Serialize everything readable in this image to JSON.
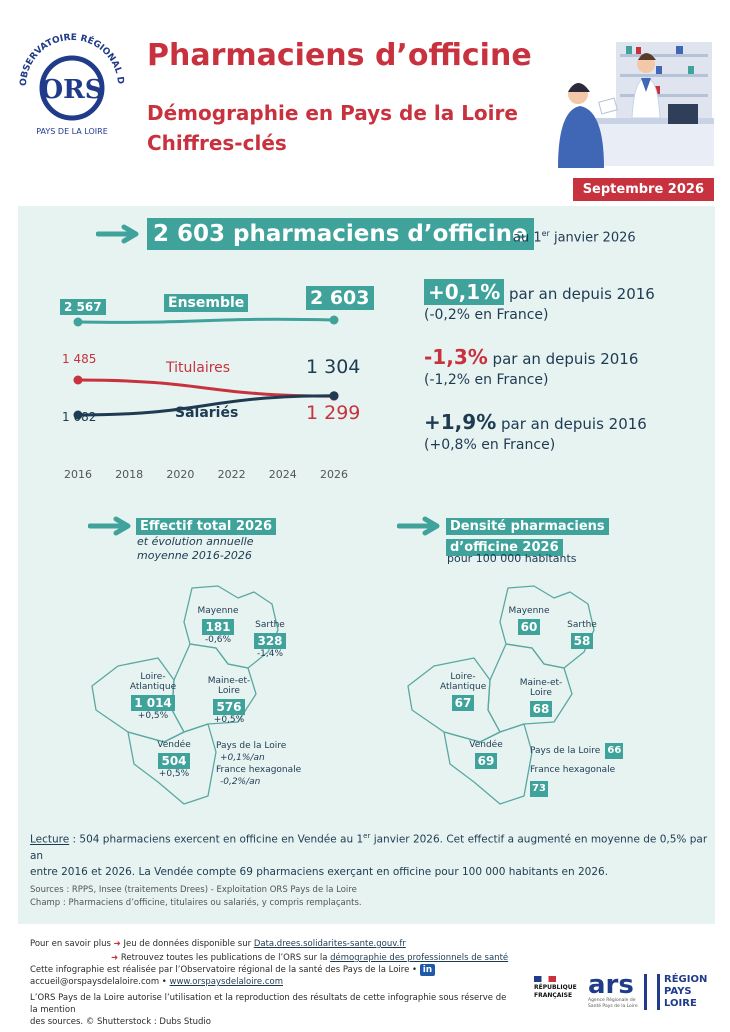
{
  "header": {
    "logo_ring_text": "OBSERVATOIRE RÉGIONAL DE LA SANTÉ",
    "logo_initials": "ORS",
    "logo_region": "PAYS DE LA LOIRE",
    "title": "Pharmaciens d’officine",
    "subtitle_line1": "Démographie en Pays de la Loire",
    "subtitle_line2": "Chiffres-clés",
    "date": "Septembre 2026"
  },
  "headline": {
    "value": "2 603 pharmaciens d’officine",
    "tail_prefix": "au 1",
    "tail_sup": "er",
    "tail_suffix": " janvier 2026"
  },
  "trend_chart": {
    "labels": {
      "ensemble": "Ensemble",
      "titulaires": "Titulaires",
      "salaries": "Salariés"
    },
    "start_values": {
      "ensemble": "2 567",
      "titulaires": "1 485",
      "salaries": "1 082"
    },
    "end_values": {
      "ensemble": "2 603",
      "titulaires": "1 299",
      "salaries": "1 304"
    }
  },
  "chart_data": {
    "type": "line",
    "x": [
      2016,
      2018,
      2020,
      2022,
      2024,
      2026
    ],
    "xticks": [
      "2016",
      "2018",
      "2020",
      "2022",
      "2024",
      "2026"
    ],
    "series": [
      {
        "name": "Ensemble",
        "x": [
          2016,
          2026
        ],
        "values": [
          2567,
          2603
        ],
        "color": "#3fa39b"
      },
      {
        "name": "Titulaires",
        "x": [
          2016,
          2026
        ],
        "values": [
          1485,
          1299
        ],
        "color": "#c8323f"
      },
      {
        "name": "Salariés",
        "x": [
          2016,
          2026
        ],
        "values": [
          1082,
          1304
        ],
        "color": "#1f3b52"
      }
    ]
  },
  "stats": [
    {
      "value": "+0,1%",
      "text": " par an depuis 2016",
      "france": "(-0,2% en France)",
      "color": "#1f3b52"
    },
    {
      "value": "-1,3%",
      "text": " par an depuis 2016",
      "france": "(-1,2% en France)",
      "color": "#c8323f"
    },
    {
      "value": "+1,9%",
      "text": " par an depuis 2016",
      "france": "(+0,8% en France)",
      "color": "#1f3b52"
    }
  ],
  "map_left": {
    "title": "Effectif total 2026",
    "subtitle1": "et évolution annuelle",
    "subtitle2": "moyenne 2016-2026",
    "depts": [
      {
        "name": "Mayenne",
        "value": "181",
        "change": "-0,6%"
      },
      {
        "name": "Sarthe",
        "value": "328",
        "change": "-1,4%"
      },
      {
        "name_line1": "Loire-",
        "name_line2": "Atlantique",
        "value": "1 014",
        "change": "+0,5%"
      },
      {
        "name": "Maine-et-Loire",
        "value": "576",
        "change": "+0,5%"
      },
      {
        "name": "Vendée",
        "value": "504",
        "change": "+0,5%"
      }
    ],
    "region_label": "Pays de la Loire",
    "region_change": "+0,1%/an",
    "france_label": "France hexagonale",
    "france_change": "-0,2%/an"
  },
  "map_right": {
    "title_line1": "Densité pharmaciens",
    "title_line2": "d’officine 2026",
    "subtitle": "pour 100 000 habitants",
    "depts": [
      {
        "name": "Mayenne",
        "value": "60"
      },
      {
        "name": "Sarthe",
        "value": "58"
      },
      {
        "name_line1": "Loire-",
        "name_line2": "Atlantique",
        "value": "67"
      },
      {
        "name": "Maine-et-Loire",
        "value": "68"
      },
      {
        "name": "Vendée",
        "value": "69"
      }
    ],
    "region_label": "Pays de la Loire",
    "region_value": "66",
    "france_label": "France hexagonale",
    "france_value": "73"
  },
  "reading": {
    "label": "Lecture",
    "text1": " : 504 pharmaciens exercent en officine en Vendée au 1",
    "sup": "er",
    "text2": " janvier 2026. Cet effectif a augmenté en moyenne de 0,5% par an",
    "line2": "entre 2016 et 2026. La Vendée compte 69 pharmaciens exerçant en officine pour 100 000 habitants en 2026."
  },
  "sources": {
    "line1": "Sources : RPPS, Insee (traitements Drees) - Exploitation ORS Pays de la Loire",
    "line2": "Champ : Pharmaciens d’officine, titulaires ou salariés, y compris remplaçants."
  },
  "footer": {
    "more_prefix": "Pour en savoir plus",
    "more1_text": "Jeu de données disponible sur ",
    "more1_link": "Data.drees.solidarites-sante.gouv.fr",
    "more2_text": "Retrouvez toutes les publications de l’ORS sur la ",
    "more2_link": "démographie des professionnels de santé",
    "made_by": "Cette infographie est réalisée par l’Observatoire régional de la santé des Pays de la Loire •",
    "linkedin": "in",
    "email": "accueil@orspaysdelaloire.com",
    "sep": " • ",
    "website": "www.orspaysdelaloire.com",
    "rights1": "L’ORS Pays de la Loire autorise l’utilisation et la reproduction des résultats de cette infographie sous réserve de la mention",
    "rights2": "des sources. © Shutterstock : Dubs Studio",
    "logo_republique1": "RÉPUBLIQUE",
    "logo_republique2": "FRANÇAISE",
    "logo_ars": "ars",
    "logo_ars_sub": "Agence Régionale de Santé Pays de la Loire",
    "logo_region1": "RÉGION",
    "logo_region2": "PAYS",
    "logo_region3": "LOIRE"
  }
}
